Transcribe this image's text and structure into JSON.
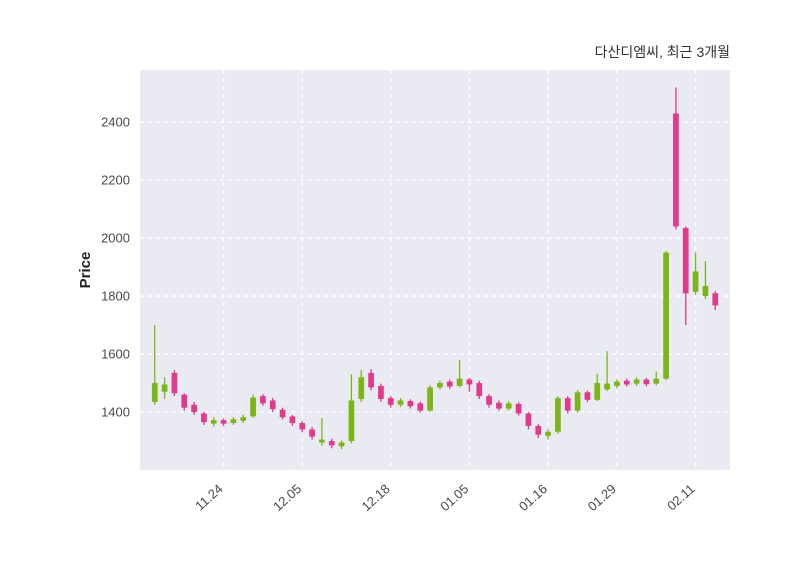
{
  "chart_data": {
    "type": "candlestick",
    "title": "다산디엠씨, 최근 3개월",
    "ylabel": "Price",
    "ylim": [
      1200,
      2580
    ],
    "yticks": [
      1400,
      1600,
      1800,
      2000,
      2200,
      2400
    ],
    "xticks": [
      {
        "index": 7,
        "label": "11.24"
      },
      {
        "index": 15,
        "label": "12.05"
      },
      {
        "index": 24,
        "label": "12.18"
      },
      {
        "index": 32,
        "label": "01.05"
      },
      {
        "index": 40,
        "label": "01.16"
      },
      {
        "index": 47,
        "label": "01.29"
      },
      {
        "index": 55,
        "label": "02.11"
      }
    ],
    "colors": {
      "up": "#7CB518",
      "down": "#E2398D",
      "plot_bg": "#EAEAF2",
      "grid": "#FFFFFF",
      "tick_text": "#4a4a4a"
    },
    "legend_position": "none",
    "grid": true,
    "candle_format": [
      "open",
      "high",
      "low",
      "close"
    ],
    "candles": [
      [
        1435,
        1700,
        1425,
        1500
      ],
      [
        1470,
        1520,
        1445,
        1495
      ],
      [
        1535,
        1545,
        1455,
        1465
      ],
      [
        1460,
        1465,
        1405,
        1415
      ],
      [
        1425,
        1435,
        1390,
        1400
      ],
      [
        1395,
        1400,
        1355,
        1365
      ],
      [
        1360,
        1382,
        1350,
        1372
      ],
      [
        1372,
        1378,
        1352,
        1360
      ],
      [
        1362,
        1382,
        1356,
        1375
      ],
      [
        1370,
        1390,
        1362,
        1382
      ],
      [
        1385,
        1460,
        1380,
        1450
      ],
      [
        1455,
        1462,
        1422,
        1430
      ],
      [
        1440,
        1448,
        1400,
        1410
      ],
      [
        1408,
        1415,
        1375,
        1382
      ],
      [
        1385,
        1390,
        1352,
        1362
      ],
      [
        1362,
        1368,
        1330,
        1340
      ],
      [
        1340,
        1348,
        1305,
        1315
      ],
      [
        1295,
        1380,
        1283,
        1305
      ],
      [
        1300,
        1308,
        1275,
        1285
      ],
      [
        1282,
        1302,
        1272,
        1295
      ],
      [
        1300,
        1530,
        1292,
        1440
      ],
      [
        1445,
        1545,
        1435,
        1520
      ],
      [
        1535,
        1548,
        1475,
        1485
      ],
      [
        1490,
        1498,
        1435,
        1445
      ],
      [
        1448,
        1455,
        1415,
        1425
      ],
      [
        1425,
        1448,
        1418,
        1440
      ],
      [
        1438,
        1444,
        1412,
        1420
      ],
      [
        1430,
        1436,
        1398,
        1405
      ],
      [
        1405,
        1492,
        1400,
        1485
      ],
      [
        1485,
        1508,
        1478,
        1500
      ],
      [
        1505,
        1512,
        1480,
        1488
      ],
      [
        1490,
        1580,
        1485,
        1515
      ],
      [
        1512,
        1518,
        1470,
        1495
      ],
      [
        1500,
        1508,
        1445,
        1455
      ],
      [
        1455,
        1462,
        1415,
        1425
      ],
      [
        1432,
        1440,
        1405,
        1412
      ],
      [
        1412,
        1438,
        1405,
        1430
      ],
      [
        1428,
        1434,
        1388,
        1395
      ],
      [
        1395,
        1400,
        1340,
        1352
      ],
      [
        1352,
        1358,
        1310,
        1322
      ],
      [
        1318,
        1340,
        1305,
        1332
      ],
      [
        1332,
        1455,
        1325,
        1448
      ],
      [
        1448,
        1455,
        1395,
        1405
      ],
      [
        1405,
        1475,
        1398,
        1468
      ],
      [
        1468,
        1474,
        1435,
        1442
      ],
      [
        1442,
        1532,
        1438,
        1500
      ],
      [
        1478,
        1610,
        1472,
        1498
      ],
      [
        1490,
        1512,
        1482,
        1505
      ],
      [
        1508,
        1515,
        1488,
        1495
      ],
      [
        1498,
        1520,
        1490,
        1512
      ],
      [
        1512,
        1518,
        1488,
        1496
      ],
      [
        1498,
        1540,
        1492,
        1515
      ],
      [
        1515,
        1955,
        1510,
        1950
      ],
      [
        2430,
        2520,
        2030,
        2040
      ],
      [
        2035,
        2040,
        1700,
        1810
      ],
      [
        1815,
        1950,
        1805,
        1885
      ],
      [
        1800,
        1920,
        1790,
        1835
      ],
      [
        1810,
        1818,
        1752,
        1768
      ]
    ]
  }
}
